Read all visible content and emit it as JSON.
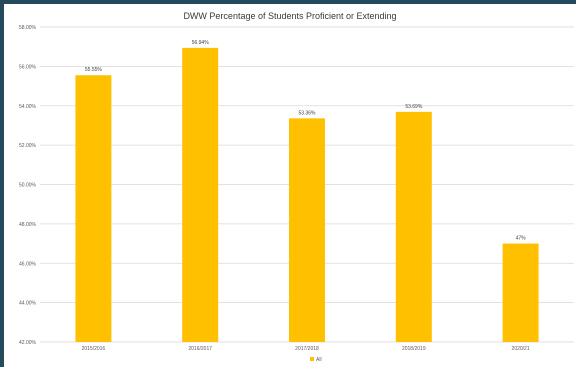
{
  "chart_data": {
    "type": "bar",
    "title": "DWW Percentage of Students Proficient or Extending",
    "xlabel": "",
    "ylabel": "",
    "categories": [
      "2015/2016",
      "2016/2017",
      "2017/2018",
      "2018/2019",
      "2020/21"
    ],
    "series": [
      {
        "name": "All",
        "values": [
          55.55,
          56.94,
          53.36,
          53.69,
          47.0
        ],
        "data_labels": [
          "55.55%",
          "56.94%",
          "53.36%",
          "53.69%",
          "47%"
        ],
        "color": "#ffc000"
      }
    ],
    "ylim": [
      42,
      58
    ],
    "yticks": [
      42,
      44,
      46,
      48,
      50,
      52,
      54,
      56,
      58
    ],
    "ytick_labels": [
      "42.00%",
      "44.00%",
      "46.00%",
      "48.00%",
      "50.00%",
      "52.00%",
      "54.00%",
      "56.00%",
      "58.00%"
    ],
    "grid": true,
    "legend_position": "bottom"
  },
  "colors": {
    "bar": "#ffc000",
    "gridline": "#d9d9d9",
    "frame": "#244a5e"
  }
}
